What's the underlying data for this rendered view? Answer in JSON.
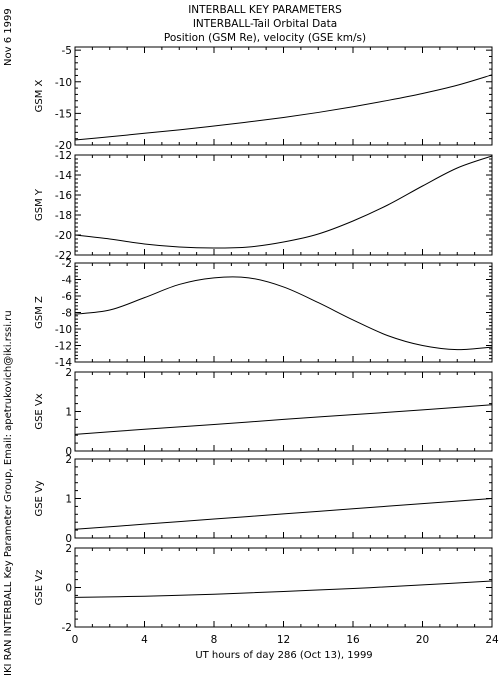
{
  "header": {
    "title_lines": [
      "INTERBALL KEY PARAMETERS",
      "INTERBALL-Tail Orbital Data",
      "Position (GSM Re), velocity (GSE km/s)"
    ],
    "date_stamp": "Nov  6 1999",
    "credit": "IKI RAN INTERBALL Key Parameter Group, Email: apetrukovich@iki.rssi.ru"
  },
  "chart_data": {
    "type": "line",
    "xlabel": "UT hours of day 286 (Oct 13), 1999",
    "xlim": [
      0,
      24
    ],
    "xticks": [
      0,
      4,
      8,
      12,
      16,
      20,
      24
    ],
    "xtick_labels": [
      "0",
      "4",
      "8",
      "12",
      "16",
      "20",
      "24"
    ],
    "panels": [
      {
        "ylabel": "GSM X",
        "ylim": [
          -20,
          -4.5
        ],
        "yticks": [
          -20,
          -15,
          -10,
          -5
        ],
        "ytick_labels": [
          "-20",
          "-15",
          "-10",
          "-5"
        ],
        "series": [
          {
            "x": [
              0,
              2,
              4,
              6,
              8,
              10,
              12,
              14,
              16,
              18,
              20,
              22,
              24
            ],
            "y": [
              -19.2,
              -18.7,
              -18.15,
              -17.6,
              -17.0,
              -16.35,
              -15.65,
              -14.85,
              -13.95,
              -12.95,
              -11.85,
              -10.55,
              -8.9
            ]
          }
        ]
      },
      {
        "ylabel": "GSM Y",
        "ylim": [
          -22,
          -12
        ],
        "yticks": [
          -22,
          -20,
          -18,
          -16,
          -14,
          -12
        ],
        "ytick_labels": [
          "-22",
          "-20",
          "-18",
          "-16",
          "-14",
          "-12"
        ],
        "series": [
          {
            "x": [
              0,
              2,
              4,
              6,
              8,
              10,
              12,
              14,
              16,
              18,
              20,
              22,
              24
            ],
            "y": [
              -20.0,
              -20.4,
              -20.9,
              -21.2,
              -21.3,
              -21.2,
              -20.7,
              -19.9,
              -18.6,
              -17.0,
              -15.1,
              -13.3,
              -12.1
            ]
          }
        ]
      },
      {
        "ylabel": "GSM Z",
        "ylim": [
          -14,
          -2
        ],
        "yticks": [
          -14,
          -12,
          -10,
          -8,
          -6,
          -4,
          -2
        ],
        "ytick_labels": [
          "-14",
          "-12",
          "-10",
          "-8",
          "-6",
          "-4",
          "-2"
        ],
        "series": [
          {
            "x": [
              0,
              2,
              4,
              6,
              8,
              10,
              12,
              14,
              16,
              18,
              20,
              22,
              24
            ],
            "y": [
              -8.2,
              -7.7,
              -6.2,
              -4.6,
              -3.8,
              -3.8,
              -4.9,
              -6.8,
              -8.9,
              -10.8,
              -12.0,
              -12.5,
              -12.2
            ]
          }
        ]
      },
      {
        "ylabel": "GSE Vx",
        "ylim": [
          0,
          2
        ],
        "yticks": [
          0,
          1,
          2
        ],
        "ytick_labels": [
          "0",
          "1",
          "2"
        ],
        "series": [
          {
            "x": [
              0,
              4,
              8,
              12,
              16,
              20,
              24
            ],
            "y": [
              0.42,
              0.55,
              0.67,
              0.8,
              0.92,
              1.04,
              1.17
            ]
          }
        ]
      },
      {
        "ylabel": "GSE Vy",
        "ylim": [
          0,
          2
        ],
        "yticks": [
          0,
          1,
          2
        ],
        "ytick_labels": [
          "0",
          "1",
          "2"
        ],
        "series": [
          {
            "x": [
              0,
              4,
              8,
              12,
              16,
              20,
              24
            ],
            "y": [
              0.22,
              0.35,
              0.48,
              0.61,
              0.74,
              0.87,
              1.0
            ]
          }
        ]
      },
      {
        "ylabel": "GSE Vz",
        "ylim": [
          -2,
          2
        ],
        "yticks": [
          -2,
          0,
          2
        ],
        "ytick_labels": [
          "-2",
          "0",
          "2"
        ],
        "series": [
          {
            "x": [
              0,
              4,
              8,
              12,
              16,
              20,
              24
            ],
            "y": [
              -0.5,
              -0.44,
              -0.34,
              -0.2,
              -0.05,
              0.13,
              0.33
            ]
          }
        ]
      }
    ]
  }
}
